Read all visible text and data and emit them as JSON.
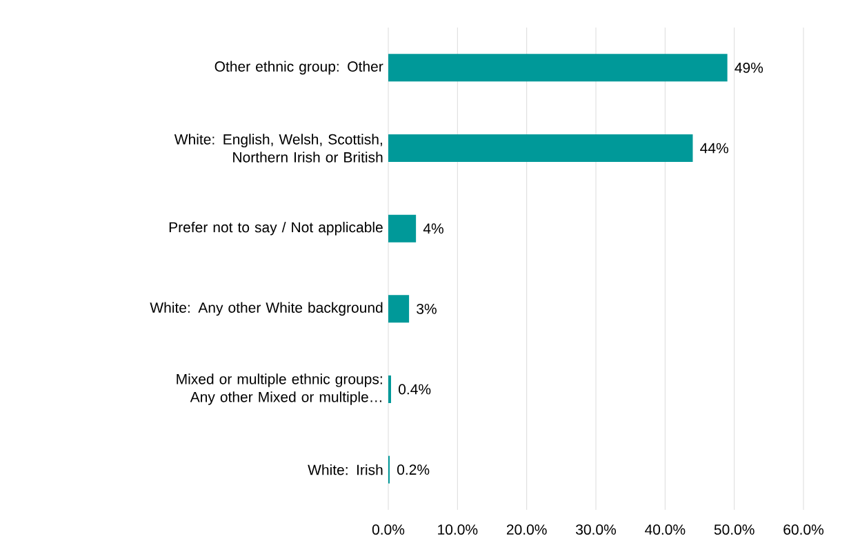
{
  "chart_data": {
    "type": "bar",
    "orientation": "horizontal",
    "categories": [
      "Other ethnic group: Other",
      "White: English, Welsh, Scottish, Northern Irish or British",
      "Prefer not to say / Not applicable",
      "White: Any other White background",
      "Mixed or multiple ethnic groups: Any other Mixed or multiple…",
      "White: Irish"
    ],
    "values": [
      49,
      44,
      4,
      3,
      0.4,
      0.2
    ],
    "value_labels": [
      "49%",
      "44%",
      "4%",
      "3%",
      "0.4%",
      "0.2%"
    ],
    "color": "#009999",
    "xlim": [
      0,
      60
    ],
    "xticks": [
      {
        "value": 0,
        "label": "0.0%"
      },
      {
        "value": 10,
        "label": "10.0%"
      },
      {
        "value": 20,
        "label": "20.0%"
      },
      {
        "value": 30,
        "label": "30.0%"
      },
      {
        "value": 40,
        "label": "40.0%"
      },
      {
        "value": 50,
        "label": "50.0%"
      },
      {
        "value": 60,
        "label": "60.0%"
      }
    ],
    "grid": "x"
  }
}
